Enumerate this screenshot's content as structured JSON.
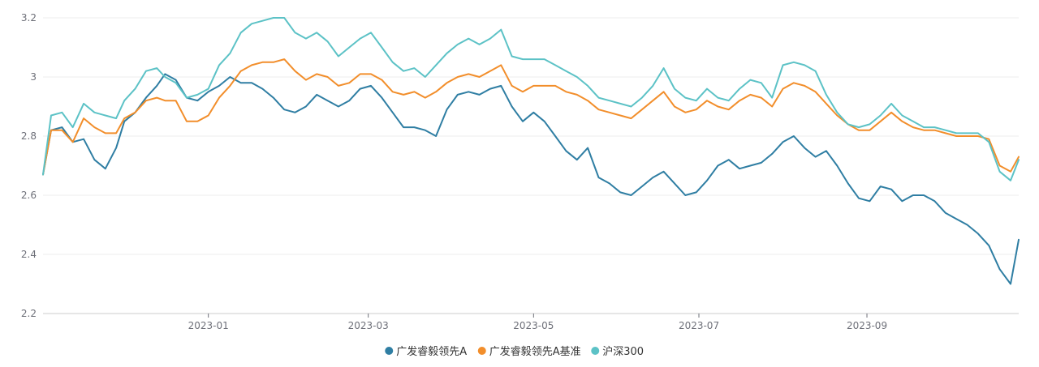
{
  "chart_data": {
    "type": "line",
    "title": "",
    "xlabel": "",
    "ylabel": "",
    "ylim": [
      2.2,
      3.2
    ],
    "y_ticks": [
      "2.2",
      "2.4",
      "2.6",
      "2.8",
      "3",
      "3.2"
    ],
    "x_ticks": [
      {
        "label": "2023-01",
        "date": "2023-01-01"
      },
      {
        "label": "2023-03",
        "date": "2023-03-01"
      },
      {
        "label": "2023-05",
        "date": "2023-05-01"
      },
      {
        "label": "2023-07",
        "date": "2023-07-01"
      },
      {
        "label": "2023-09",
        "date": "2023-09-01"
      }
    ],
    "grid": "horizontal",
    "legend_position": "bottom-center",
    "x_dates": [
      "2022-11-01",
      "2022-11-04",
      "2022-11-08",
      "2022-11-12",
      "2022-11-16",
      "2022-11-20",
      "2022-11-24",
      "2022-11-28",
      "2022-12-01",
      "2022-12-05",
      "2022-12-09",
      "2022-12-13",
      "2022-12-16",
      "2022-12-20",
      "2022-12-24",
      "2022-12-28",
      "2023-01-01",
      "2023-01-05",
      "2023-01-09",
      "2023-01-13",
      "2023-01-17",
      "2023-01-21",
      "2023-01-25",
      "2023-01-29",
      "2023-02-02",
      "2023-02-06",
      "2023-02-10",
      "2023-02-14",
      "2023-02-18",
      "2023-02-22",
      "2023-02-26",
      "2023-03-02",
      "2023-03-06",
      "2023-03-10",
      "2023-03-14",
      "2023-03-18",
      "2023-03-22",
      "2023-03-26",
      "2023-03-30",
      "2023-04-03",
      "2023-04-07",
      "2023-04-11",
      "2023-04-15",
      "2023-04-19",
      "2023-04-23",
      "2023-04-27",
      "2023-05-01",
      "2023-05-05",
      "2023-05-09",
      "2023-05-13",
      "2023-05-17",
      "2023-05-21",
      "2023-05-25",
      "2023-05-29",
      "2023-06-02",
      "2023-06-06",
      "2023-06-10",
      "2023-06-14",
      "2023-06-18",
      "2023-06-22",
      "2023-06-26",
      "2023-06-30",
      "2023-07-04",
      "2023-07-08",
      "2023-07-12",
      "2023-07-16",
      "2023-07-20",
      "2023-07-24",
      "2023-07-28",
      "2023-08-01",
      "2023-08-05",
      "2023-08-09",
      "2023-08-13",
      "2023-08-17",
      "2023-08-21",
      "2023-08-25",
      "2023-08-29",
      "2023-09-02",
      "2023-09-06",
      "2023-09-10",
      "2023-09-14",
      "2023-09-18",
      "2023-09-22",
      "2023-09-26",
      "2023-09-30",
      "2023-10-04",
      "2023-10-08",
      "2023-10-12",
      "2023-10-16",
      "2023-10-20",
      "2023-10-24",
      "2023-10-27"
    ],
    "series": [
      {
        "name": "广发睿毅领先A",
        "color": "#2f7ea3",
        "values": [
          2.67,
          2.82,
          2.83,
          2.78,
          2.79,
          2.72,
          2.69,
          2.76,
          2.85,
          2.88,
          2.93,
          2.97,
          3.01,
          2.99,
          2.93,
          2.92,
          2.95,
          2.97,
          3.0,
          2.98,
          2.98,
          2.96,
          2.93,
          2.89,
          2.88,
          2.9,
          2.94,
          2.92,
          2.9,
          2.92,
          2.96,
          2.97,
          2.93,
          2.88,
          2.83,
          2.83,
          2.82,
          2.8,
          2.89,
          2.94,
          2.95,
          2.94,
          2.96,
          2.97,
          2.9,
          2.85,
          2.88,
          2.85,
          2.8,
          2.75,
          2.72,
          2.76,
          2.66,
          2.64,
          2.61,
          2.6,
          2.63,
          2.66,
          2.68,
          2.64,
          2.6,
          2.61,
          2.65,
          2.7,
          2.72,
          2.69,
          2.7,
          2.71,
          2.74,
          2.78,
          2.8,
          2.76,
          2.73,
          2.75,
          2.7,
          2.64,
          2.59,
          2.58,
          2.63,
          2.62,
          2.58,
          2.6,
          2.6,
          2.58,
          2.54,
          2.52,
          2.5,
          2.47,
          2.43,
          2.35,
          2.3,
          2.45
        ]
      },
      {
        "name": "广发睿毅领先A基准",
        "color": "#f28e2b",
        "values": [
          2.67,
          2.82,
          2.82,
          2.78,
          2.86,
          2.83,
          2.81,
          2.81,
          2.86,
          2.88,
          2.92,
          2.93,
          2.92,
          2.92,
          2.85,
          2.85,
          2.87,
          2.93,
          2.97,
          3.02,
          3.04,
          3.05,
          3.05,
          3.06,
          3.02,
          2.99,
          3.01,
          3.0,
          2.97,
          2.98,
          3.01,
          3.01,
          2.99,
          2.95,
          2.94,
          2.95,
          2.93,
          2.95,
          2.98,
          3.0,
          3.01,
          3.0,
          3.02,
          3.04,
          2.97,
          2.95,
          2.97,
          2.97,
          2.97,
          2.95,
          2.94,
          2.92,
          2.89,
          2.88,
          2.87,
          2.86,
          2.89,
          2.92,
          2.95,
          2.9,
          2.88,
          2.89,
          2.92,
          2.9,
          2.89,
          2.92,
          2.94,
          2.93,
          2.9,
          2.96,
          2.98,
          2.97,
          2.95,
          2.91,
          2.87,
          2.84,
          2.82,
          2.82,
          2.85,
          2.88,
          2.85,
          2.83,
          2.82,
          2.82,
          2.81,
          2.8,
          2.8,
          2.8,
          2.79,
          2.7,
          2.68,
          2.73
        ]
      },
      {
        "name": "沪深300",
        "color": "#5cc2c6",
        "values": [
          2.67,
          2.87,
          2.88,
          2.83,
          2.91,
          2.88,
          2.87,
          2.86,
          2.92,
          2.96,
          3.02,
          3.03,
          3.0,
          2.98,
          2.93,
          2.94,
          2.96,
          3.04,
          3.08,
          3.15,
          3.18,
          3.19,
          3.2,
          3.2,
          3.15,
          3.13,
          3.15,
          3.12,
          3.07,
          3.1,
          3.13,
          3.15,
          3.1,
          3.05,
          3.02,
          3.03,
          3.0,
          3.04,
          3.08,
          3.11,
          3.13,
          3.11,
          3.13,
          3.16,
          3.07,
          3.06,
          3.06,
          3.06,
          3.04,
          3.02,
          3.0,
          2.97,
          2.93,
          2.92,
          2.91,
          2.9,
          2.93,
          2.97,
          3.03,
          2.96,
          2.93,
          2.92,
          2.96,
          2.93,
          2.92,
          2.96,
          2.99,
          2.98,
          2.93,
          3.04,
          3.05,
          3.04,
          3.02,
          2.94,
          2.88,
          2.84,
          2.83,
          2.84,
          2.87,
          2.91,
          2.87,
          2.85,
          2.83,
          2.83,
          2.82,
          2.81,
          2.81,
          2.81,
          2.78,
          2.68,
          2.65,
          2.72
        ]
      }
    ]
  }
}
